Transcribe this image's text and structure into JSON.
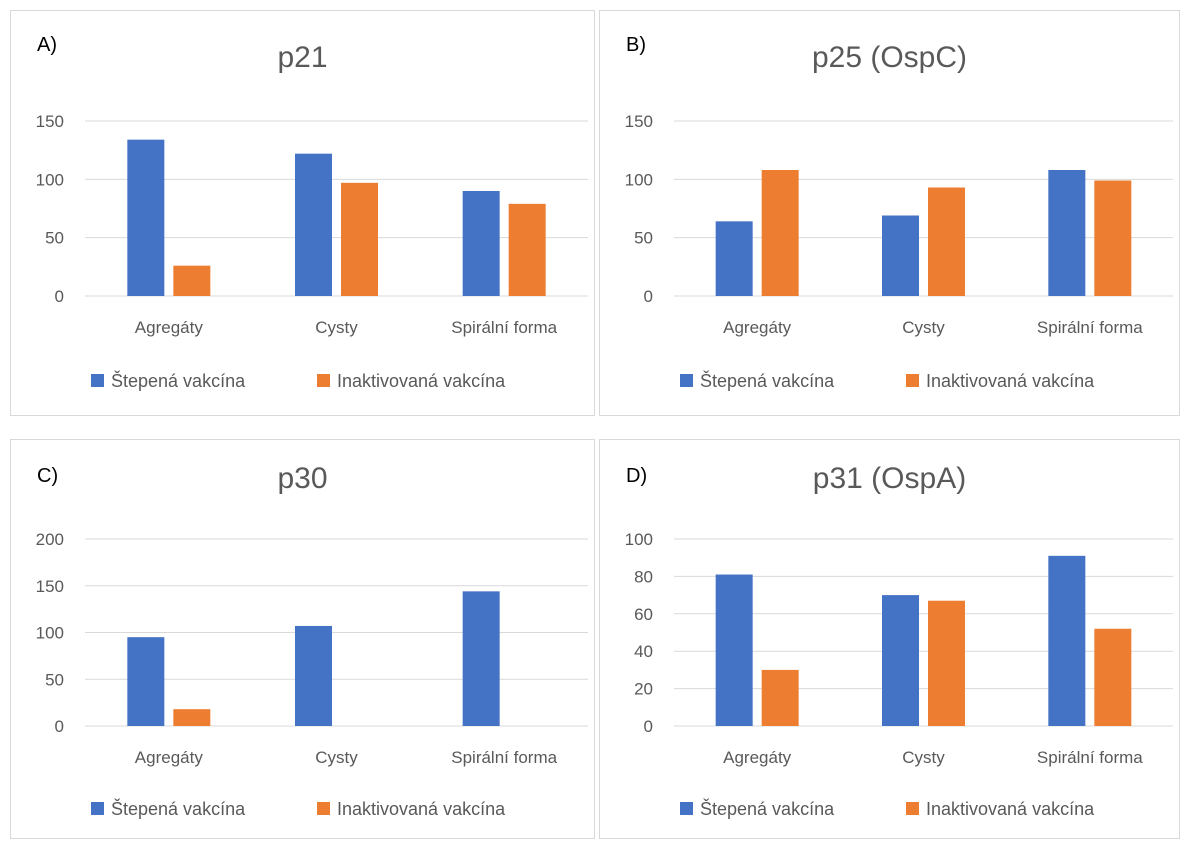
{
  "colors": {
    "series1": "#4472C4",
    "series2": "#ED7D31"
  },
  "chart_data": [
    {
      "panel_label": "A)",
      "type": "bar",
      "title": "p21",
      "categories": [
        "Agregáty",
        "Cysty",
        "Spirální forma"
      ],
      "series": [
        {
          "name": "Štepená vakcína",
          "values": [
            134,
            122,
            90
          ]
        },
        {
          "name": "Inaktivovaná vakcína",
          "values": [
            26,
            97,
            79
          ]
        }
      ],
      "yticks": [
        0,
        50,
        100,
        150
      ],
      "ylim": [
        0,
        150
      ],
      "grid": true,
      "legend": "bottom"
    },
    {
      "panel_label": "B)",
      "type": "bar",
      "title": "p25 (OspC)",
      "categories": [
        "Agregáty",
        "Cysty",
        "Spirální forma"
      ],
      "series": [
        {
          "name": "Štepená vakcína",
          "values": [
            64,
            69,
            108
          ]
        },
        {
          "name": "Inaktivovaná vakcína",
          "values": [
            108,
            93,
            99
          ]
        }
      ],
      "yticks": [
        0,
        50,
        100,
        150
      ],
      "ylim": [
        0,
        150
      ],
      "grid": true,
      "legend": "bottom"
    },
    {
      "panel_label": "C)",
      "type": "bar",
      "title": "p30",
      "categories": [
        "Agregáty",
        "Cysty",
        "Spirální forma"
      ],
      "series": [
        {
          "name": "Štepená vakcína",
          "values": [
            95,
            107,
            144
          ]
        },
        {
          "name": "Inaktivovaná vakcína",
          "values": [
            18,
            0,
            0
          ]
        }
      ],
      "yticks": [
        0,
        50,
        100,
        150,
        200
      ],
      "ylim": [
        0,
        200
      ],
      "grid": true,
      "legend": "bottom"
    },
    {
      "panel_label": "D)",
      "type": "bar",
      "title": "p31 (OspA)",
      "categories": [
        "Agregáty",
        "Cysty",
        "Spirální forma"
      ],
      "series": [
        {
          "name": "Štepená vakcína",
          "values": [
            81,
            70,
            91
          ]
        },
        {
          "name": "Inaktivovaná vakcína",
          "values": [
            30,
            67,
            52
          ]
        }
      ],
      "yticks": [
        0,
        20,
        40,
        60,
        80,
        100
      ],
      "ylim": [
        0,
        100
      ],
      "grid": true,
      "legend": "bottom"
    }
  ]
}
